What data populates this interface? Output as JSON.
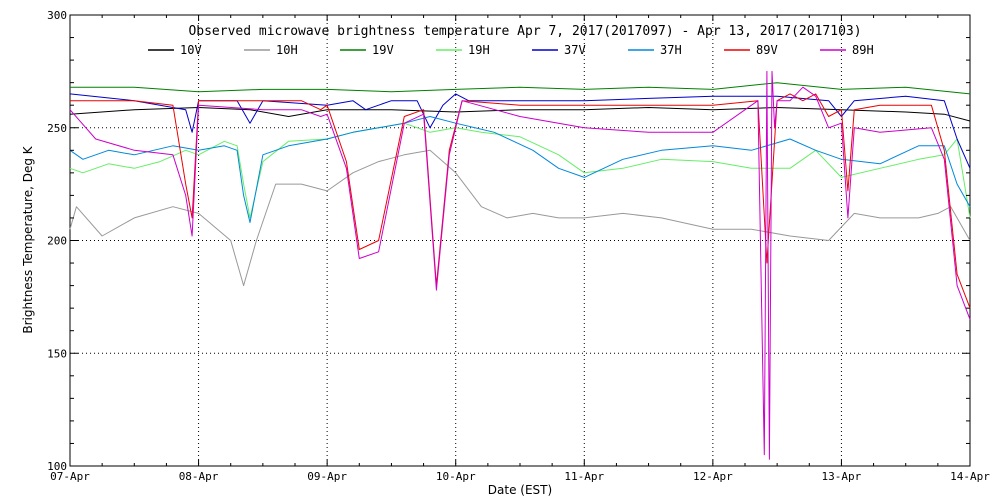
{
  "chart_data": {
    "type": "line",
    "title": "Observed microwave brightness temperature Apr  7, 2017(2017097) - Apr 13, 2017(2017103)",
    "xlabel": "Date (EST)",
    "ylabel": "Brightness Temperature, Deg K",
    "xlim": [
      0,
      7
    ],
    "ylim": [
      100,
      300
    ],
    "y_ticks": [
      100,
      150,
      200,
      250,
      300
    ],
    "x_ticks": [
      0,
      1,
      2,
      3,
      4,
      5,
      6,
      7
    ],
    "x_tick_labels": [
      "07-Apr",
      "08-Apr",
      "09-Apr",
      "10-Apr",
      "11-Apr",
      "12-Apr",
      "13-Apr",
      "14-Apr"
    ],
    "grid": "dotted",
    "x_units": "days since 07-Apr 00:00",
    "series": [
      {
        "name": "10V",
        "color": "#000000",
        "x": [
          0,
          0.5,
          1,
          1.4,
          1.7,
          2,
          2.5,
          3,
          3.5,
          4,
          4.5,
          5,
          5.5,
          6,
          6.5,
          6.8,
          7
        ],
        "y": [
          256,
          258,
          259,
          258,
          255,
          258,
          258,
          257,
          258,
          258,
          259,
          258,
          259,
          258,
          257,
          256,
          253
        ]
      },
      {
        "name": "10H",
        "color": "#999999",
        "x": [
          0,
          0.05,
          0.25,
          0.5,
          0.8,
          1,
          1.25,
          1.35,
          1.45,
          1.6,
          1.8,
          2,
          2.2,
          2.4,
          2.6,
          2.8,
          3,
          3.2,
          3.4,
          3.6,
          3.8,
          4,
          4.3,
          4.6,
          5,
          5.3,
          5.6,
          5.9,
          6.1,
          6.3,
          6.6,
          6.75,
          6.85,
          7
        ],
        "y": [
          205,
          215,
          202,
          210,
          215,
          212,
          200,
          180,
          200,
          225,
          225,
          222,
          230,
          235,
          238,
          240,
          230,
          215,
          210,
          212,
          210,
          210,
          212,
          210,
          205,
          205,
          202,
          200,
          212,
          210,
          210,
          212,
          215,
          200
        ]
      },
      {
        "name": "19V",
        "color": "#008000",
        "x": [
          0,
          0.5,
          1,
          1.5,
          2,
          2.5,
          3,
          3.5,
          4,
          4.5,
          5,
          5.5,
          6,
          6.5,
          7
        ],
        "y": [
          268,
          268,
          266,
          267,
          267,
          266,
          267,
          268,
          267,
          268,
          267,
          270,
          267,
          268,
          265
        ]
      },
      {
        "name": "19H",
        "color": "#66ee66",
        "x": [
          0,
          0.1,
          0.3,
          0.5,
          0.7,
          0.9,
          1,
          1.2,
          1.3,
          1.35,
          1.4,
          1.5,
          1.7,
          2,
          2.2,
          2.4,
          2.6,
          2.8,
          3,
          3.2,
          3.5,
          3.8,
          4,
          4.3,
          4.6,
          5,
          5.3,
          5.6,
          5.8,
          6,
          6.3,
          6.6,
          6.8,
          6.9,
          7
        ],
        "y": [
          232,
          230,
          234,
          232,
          235,
          240,
          238,
          244,
          242,
          225,
          210,
          235,
          244,
          245,
          248,
          250,
          252,
          248,
          250,
          248,
          246,
          238,
          230,
          232,
          236,
          235,
          232,
          232,
          240,
          228,
          232,
          236,
          238,
          245,
          210
        ]
      },
      {
        "name": "37V",
        "color": "#0000cc",
        "x": [
          0,
          0.5,
          0.9,
          0.95,
          1,
          1.3,
          1.4,
          1.5,
          2,
          2.2,
          2.3,
          2.5,
          2.7,
          2.8,
          2.9,
          3,
          3.1,
          3.5,
          4,
          4.5,
          5,
          5.5,
          5.9,
          6,
          6.1,
          6.5,
          6.8,
          6.9,
          7
        ],
        "y": [
          265,
          262,
          258,
          248,
          262,
          262,
          252,
          262,
          260,
          262,
          258,
          262,
          262,
          250,
          260,
          265,
          262,
          262,
          262,
          263,
          264,
          264,
          262,
          255,
          262,
          264,
          262,
          245,
          232
        ]
      },
      {
        "name": "37H",
        "color": "#0088dd",
        "x": [
          0,
          0.1,
          0.3,
          0.5,
          0.8,
          1,
          1.2,
          1.3,
          1.35,
          1.4,
          1.5,
          1.7,
          2,
          2.2,
          2.4,
          2.6,
          2.8,
          3,
          3.3,
          3.6,
          3.8,
          4,
          4.3,
          4.6,
          5,
          5.3,
          5.6,
          5.8,
          6,
          6.3,
          6.6,
          6.8,
          6.9,
          7
        ],
        "y": [
          240,
          236,
          240,
          238,
          242,
          240,
          242,
          240,
          220,
          208,
          238,
          242,
          245,
          248,
          250,
          252,
          255,
          252,
          248,
          240,
          232,
          228,
          236,
          240,
          242,
          240,
          245,
          240,
          236,
          234,
          242,
          242,
          225,
          215
        ]
      },
      {
        "name": "89V",
        "color": "#ee0000",
        "x": [
          0,
          0.5,
          0.8,
          0.9,
          0.95,
          1,
          1.5,
          1.8,
          1.95,
          2,
          2.15,
          2.25,
          2.4,
          2.6,
          2.75,
          2.85,
          2.95,
          3.05,
          3.5,
          4,
          4.5,
          5,
          5.35,
          5.42,
          5.5,
          5.6,
          5.7,
          5.8,
          5.9,
          6,
          6.05,
          6.1,
          6.3,
          6.7,
          6.8,
          6.9,
          7
        ],
        "y": [
          262,
          262,
          260,
          225,
          210,
          262,
          262,
          262,
          258,
          260,
          235,
          196,
          200,
          255,
          258,
          180,
          240,
          262,
          260,
          260,
          260,
          260,
          262,
          190,
          262,
          265,
          262,
          265,
          255,
          258,
          222,
          258,
          260,
          260,
          240,
          185,
          170
        ]
      },
      {
        "name": "89H",
        "color": "#cc00cc",
        "x": [
          0,
          0.2,
          0.5,
          0.8,
          0.9,
          0.95,
          1,
          1.5,
          1.8,
          1.95,
          2,
          2.15,
          2.25,
          2.4,
          2.6,
          2.75,
          2.85,
          2.95,
          3.05,
          3.5,
          4,
          4.5,
          5,
          5.35,
          5.4,
          5.42,
          5.44,
          5.46,
          5.48,
          5.5,
          5.6,
          5.7,
          5.8,
          5.9,
          6,
          6.05,
          6.1,
          6.3,
          6.7,
          6.8,
          6.9,
          7
        ],
        "y": [
          258,
          245,
          240,
          238,
          220,
          202,
          260,
          258,
          258,
          255,
          256,
          232,
          192,
          195,
          252,
          256,
          178,
          238,
          262,
          255,
          250,
          248,
          248,
          262,
          105,
          275,
          103,
          275,
          250,
          262,
          262,
          268,
          264,
          250,
          252,
          210,
          250,
          248,
          250,
          236,
          180,
          165
        ]
      }
    ]
  }
}
